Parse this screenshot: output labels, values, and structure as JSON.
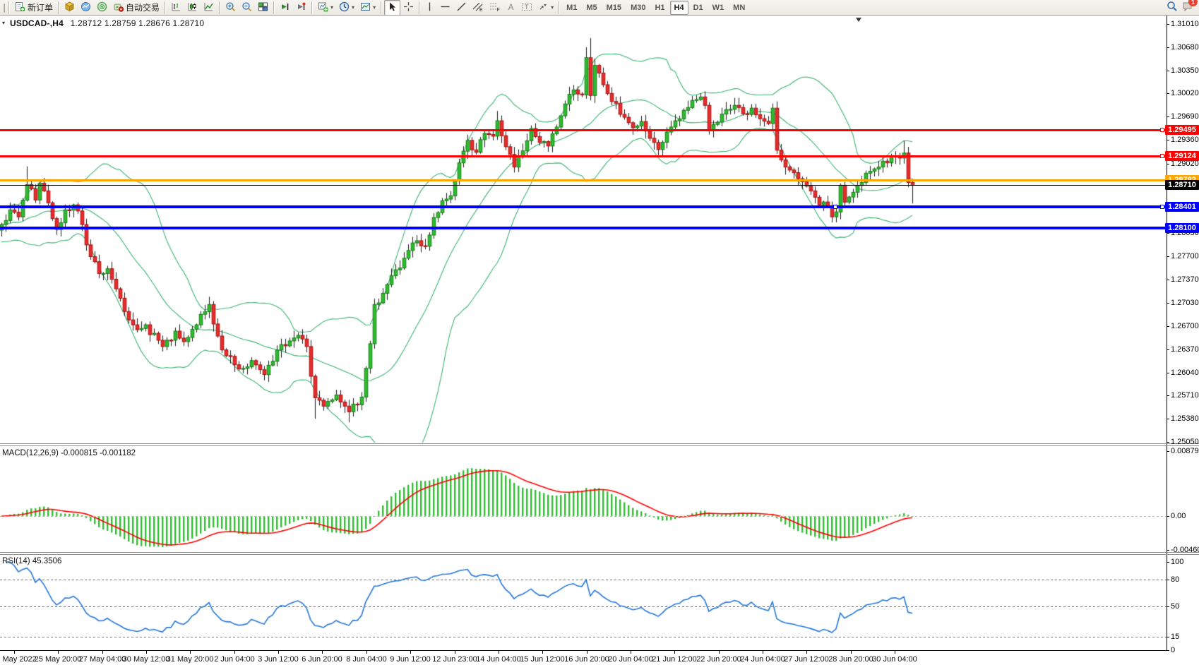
{
  "toolbar": {
    "new_order_label": "新订单",
    "autotrading_label": "自动交易",
    "timeframes": [
      "M1",
      "M5",
      "M15",
      "M30",
      "H1",
      "H4",
      "D1",
      "W1",
      "MN"
    ],
    "active_timeframe": "H4",
    "notification_count": "1"
  },
  "chart_title": {
    "symbol_period": "USDCAD-,H4",
    "ohlc": "1.28712 1.28759 1.28676 1.28710"
  },
  "chart_data": {
    "type": "candlestick",
    "symbol": "USDCAD-",
    "timeframe": "H4",
    "ohlc_current": {
      "open": 1.28712,
      "high": 1.28759,
      "low": 1.28676,
      "close": 1.2871
    },
    "main_pane": {
      "y_ticks": [
        "1.31010",
        "1.30680",
        "1.30350",
        "1.30020",
        "1.29690",
        "1.29360",
        "1.29020",
        "1.28690",
        "1.28360",
        "1.28030",
        "1.27700",
        "1.27370",
        "1.27030",
        "1.26700",
        "1.26370",
        "1.26040",
        "1.25710",
        "1.25380",
        "1.25050"
      ],
      "range": {
        "top": 1.3101,
        "bottom": 1.2505
      },
      "horizontal_lines": [
        {
          "price": 1.29495,
          "label": "1.29495",
          "color": "#FF0000",
          "thickness": 3,
          "handle": true,
          "text_color": "#FFFFFF"
        },
        {
          "price": 1.29124,
          "label": "1.29124",
          "color": "#FF0000",
          "thickness": 3,
          "handle": true,
          "text_color": "#FFFFFF"
        },
        {
          "price": 1.28782,
          "label": "1.28782",
          "color": "#FFA500",
          "thickness": 3,
          "handle": false,
          "text_color": "#FFFFFF"
        },
        {
          "price": 1.2871,
          "label": "1.28710",
          "color": "#000000",
          "thickness": 1,
          "handle": false,
          "text_color": "#FFFFFF"
        },
        {
          "price": 1.28401,
          "label": "1.28401",
          "color": "#0000FF",
          "thickness": 4,
          "handle": true,
          "mid_handle_x": 1183,
          "text_color": "#FFFFFF"
        },
        {
          "price": 1.281,
          "label": "1.28100",
          "color": "#0000FF",
          "thickness": 4,
          "handle": false,
          "text_color": "#FFFFFF"
        }
      ],
      "bollinger": {
        "period": 20,
        "deviation": 2,
        "color": "#3CB371"
      },
      "candles": {
        "count": 216,
        "bull_color": "#2DBE2D",
        "bear_color": "#ED2A2A",
        "wick_color": "#1a1a1a",
        "close_anchors": [
          [
            0,
            1.2815
          ],
          [
            2,
            1.2836
          ],
          [
            4,
            1.2826
          ],
          [
            6,
            1.2872
          ],
          [
            8,
            1.285
          ],
          [
            9,
            1.2874
          ],
          [
            11,
            1.2846
          ],
          [
            13,
            1.2808
          ],
          [
            15,
            1.2836
          ],
          [
            17,
            1.2843
          ],
          [
            19,
            1.2815
          ],
          [
            20,
            1.2786
          ],
          [
            22,
            1.2762
          ],
          [
            23,
            1.2745
          ],
          [
            25,
            1.2752
          ],
          [
            26,
            1.2737
          ],
          [
            28,
            1.271
          ],
          [
            29,
            1.2691
          ],
          [
            31,
            1.2672
          ],
          [
            32,
            1.2665
          ],
          [
            34,
            1.2672
          ],
          [
            35,
            1.2658
          ],
          [
            37,
            1.265
          ],
          [
            38,
            1.2641
          ],
          [
            40,
            1.265
          ],
          [
            41,
            1.2663
          ],
          [
            43,
            1.2648
          ],
          [
            44,
            1.2654
          ],
          [
            46,
            1.2672
          ],
          [
            47,
            1.2687
          ],
          [
            49,
            1.2701
          ],
          [
            51,
            1.2656
          ],
          [
            53,
            1.2628
          ],
          [
            55,
            1.2615
          ],
          [
            56,
            1.2609
          ],
          [
            58,
            1.2612
          ],
          [
            59,
            1.2621
          ],
          [
            61,
            1.2608
          ],
          [
            62,
            1.2601
          ],
          [
            64,
            1.262
          ],
          [
            65,
            1.2636
          ],
          [
            67,
            1.2642
          ],
          [
            68,
            1.2649
          ],
          [
            70,
            1.2657
          ],
          [
            72,
            1.2641
          ],
          [
            74,
            1.2568
          ],
          [
            76,
            1.2556
          ],
          [
            78,
            1.2565
          ],
          [
            79,
            1.2572
          ],
          [
            81,
            1.2556
          ],
          [
            82,
            1.2548
          ],
          [
            84,
            1.2558
          ],
          [
            85,
            1.2569
          ],
          [
            87,
            1.2645
          ],
          [
            88,
            1.2701
          ],
          [
            90,
            1.2717
          ],
          [
            92,
            1.2742
          ],
          [
            94,
            1.2753
          ],
          [
            96,
            1.2778
          ],
          [
            98,
            1.2792
          ],
          [
            100,
            1.2784
          ],
          [
            102,
            1.2825
          ],
          [
            104,
            1.2849
          ],
          [
            106,
            1.2856
          ],
          [
            108,
            1.2903
          ],
          [
            110,
            1.2935
          ],
          [
            112,
            1.2918
          ],
          [
            114,
            1.2945
          ],
          [
            116,
            1.2941
          ],
          [
            117,
            1.2963
          ],
          [
            119,
            1.2926
          ],
          [
            121,
            1.2897
          ],
          [
            123,
            1.292
          ],
          [
            125,
            1.2952
          ],
          [
            127,
            1.2932
          ],
          [
            129,
            1.2927
          ],
          [
            131,
            1.2954
          ],
          [
            133,
            1.2987
          ],
          [
            135,
            1.3007
          ],
          [
            137,
            1.3
          ],
          [
            138,
            1.3053
          ],
          [
            139,
            1.2999
          ],
          [
            140,
            1.3042
          ],
          [
            141,
            1.3031
          ],
          [
            143,
            1.3002
          ],
          [
            145,
            1.2988
          ],
          [
            147,
            1.2968
          ],
          [
            149,
            1.2953
          ],
          [
            151,
            1.2962
          ],
          [
            153,
            1.2938
          ],
          [
            155,
            1.2922
          ],
          [
            157,
            1.2947
          ],
          [
            159,
            1.2963
          ],
          [
            161,
            1.2978
          ],
          [
            163,
            1.2992
          ],
          [
            165,
            1.2997
          ],
          [
            166,
            1.2985
          ],
          [
            167,
            1.2949
          ],
          [
            169,
            1.2961
          ],
          [
            171,
            1.2979
          ],
          [
            173,
            1.2985
          ],
          [
            175,
            1.2973
          ],
          [
            177,
            1.2981
          ],
          [
            179,
            1.2966
          ],
          [
            181,
            1.2959
          ],
          [
            182,
            1.2981
          ],
          [
            183,
            1.2921
          ],
          [
            185,
            1.2897
          ],
          [
            187,
            1.2889
          ],
          [
            189,
            1.2876
          ],
          [
            191,
            1.2863
          ],
          [
            193,
            1.2843
          ],
          [
            195,
            1.2841
          ],
          [
            196,
            1.2826
          ],
          [
            197,
            1.2833
          ],
          [
            198,
            1.2871
          ],
          [
            199,
            1.2847
          ],
          [
            201,
            1.2861
          ],
          [
            203,
            1.2875
          ],
          [
            205,
            1.2891
          ],
          [
            207,
            1.2897
          ],
          [
            209,
            1.2903
          ],
          [
            211,
            1.2913
          ],
          [
            213,
            1.2917
          ],
          [
            214,
            1.2875
          ],
          [
            215,
            1.2871
          ]
        ],
        "special_wicks": {
          "6": {
            "h": 1.2898
          },
          "49": {
            "h": 1.2712
          },
          "74": {
            "l": 1.2538
          },
          "82": {
            "l": 1.2533
          },
          "117": {
            "h": 1.2977
          },
          "138": {
            "h": 1.3068
          },
          "139": {
            "h": 1.3081
          },
          "166": {
            "h": 1.3005
          },
          "196": {
            "l": 1.2818
          },
          "213": {
            "h": 1.2934
          },
          "215": {
            "l": 1.2845
          }
        }
      }
    },
    "macd_pane": {
      "label": "MACD(12,26,9) -0.000815 -0.001182",
      "fast": 12,
      "slow": 26,
      "signal": 9,
      "macd_value": -0.000815,
      "signal_value": -0.001182,
      "y_ticks": [
        {
          "text": "0.008791",
          "value": 0.008791
        },
        {
          "text": "0.00",
          "value": 0
        },
        {
          "text": "-0.004601",
          "value": -0.004601
        }
      ],
      "histogram_color": "#2DBE2D",
      "signal_color": "#FF0000"
    },
    "rsi_pane": {
      "label": "RSI(14) 45.3506",
      "period": 14,
      "value": 45.3506,
      "levels": [
        80,
        50,
        15
      ],
      "y_ticks": [
        {
          "text": "100",
          "value": 100
        },
        {
          "text": "80",
          "value": 80
        },
        {
          "text": "50",
          "value": 50
        },
        {
          "text": "15",
          "value": 15
        },
        {
          "text": "0",
          "value": 0
        }
      ],
      "line_color": "#2476D8"
    },
    "x_labels": [
      "24 May 2022",
      "25 May 20:00",
      "27 May 04:00",
      "30 May 12:00",
      "31 May 20:00",
      "2 Jun 04:00",
      "3 Jun 12:00",
      "6 Jun 20:00",
      "8 Jun 04:00",
      "9 Jun 12:00",
      "12 Jun 23:00",
      "14 Jun 04:00",
      "15 Jun 12:00",
      "16 Jun 20:00",
      "20 Jun 04:00",
      "21 Jun 12:00",
      "22 Jun 20:00",
      "24 Jun 04:00",
      "27 Jun 12:00",
      "28 Jun 20:00",
      "30 Jun 04:00"
    ]
  }
}
